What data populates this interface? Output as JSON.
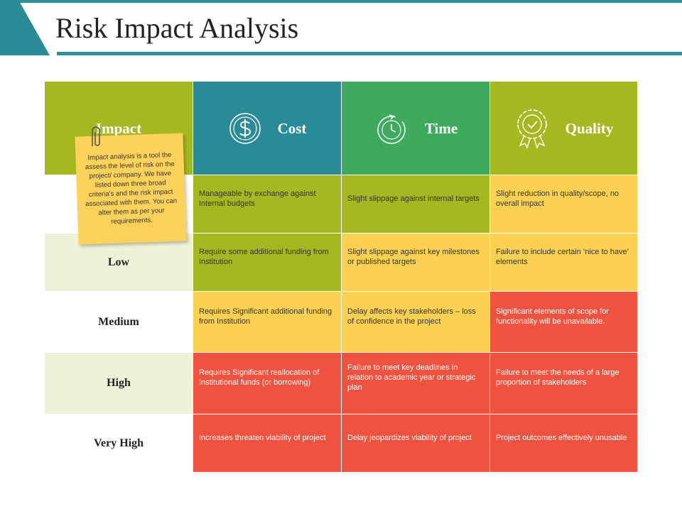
{
  "header": {
    "title": "Risk Impact Analysis"
  },
  "table": {
    "columns": [
      "Impact",
      "Cost",
      "Time",
      "Quality"
    ],
    "rows": [
      {
        "cells": [
          "Manageable by exchange against Internal budgets",
          "Slight slippage against internal targets",
          "Slight reduction in quality/scope, no overall impact"
        ]
      },
      {
        "label": "Low",
        "cells": [
          "Require some additional funding from Institution",
          "Slight slippage against key milestones or published targets",
          "Failure to include certain ‘nice to have’ elements"
        ]
      },
      {
        "label": "Medium",
        "cells": [
          "Requires Significant additional funding from Institution",
          "Delay affects key stakeholders – loss of confidence in the project",
          "Significant elements of scope for functionality will be unavailable."
        ]
      },
      {
        "label": "High",
        "cells": [
          "Requires Significant reallocation of Institutional funds (or borrowing)",
          "Failure to meet key deadlines in relation to academic year or strategic plan",
          "Failure to meet the needs of a large proportion of stakeholders"
        ]
      },
      {
        "label": "Very High",
        "cells": [
          "Increases threaten viability of project",
          "Delay jeopardizes viability of project",
          "Project outcomes effectively unusable"
        ]
      }
    ]
  },
  "note": {
    "text": "Impact analysis is a tool the assess the level of risk on the project/ company. We have listed down three broad criteria's and the risk impact associated with them. You can alter them as per your requirements."
  }
}
